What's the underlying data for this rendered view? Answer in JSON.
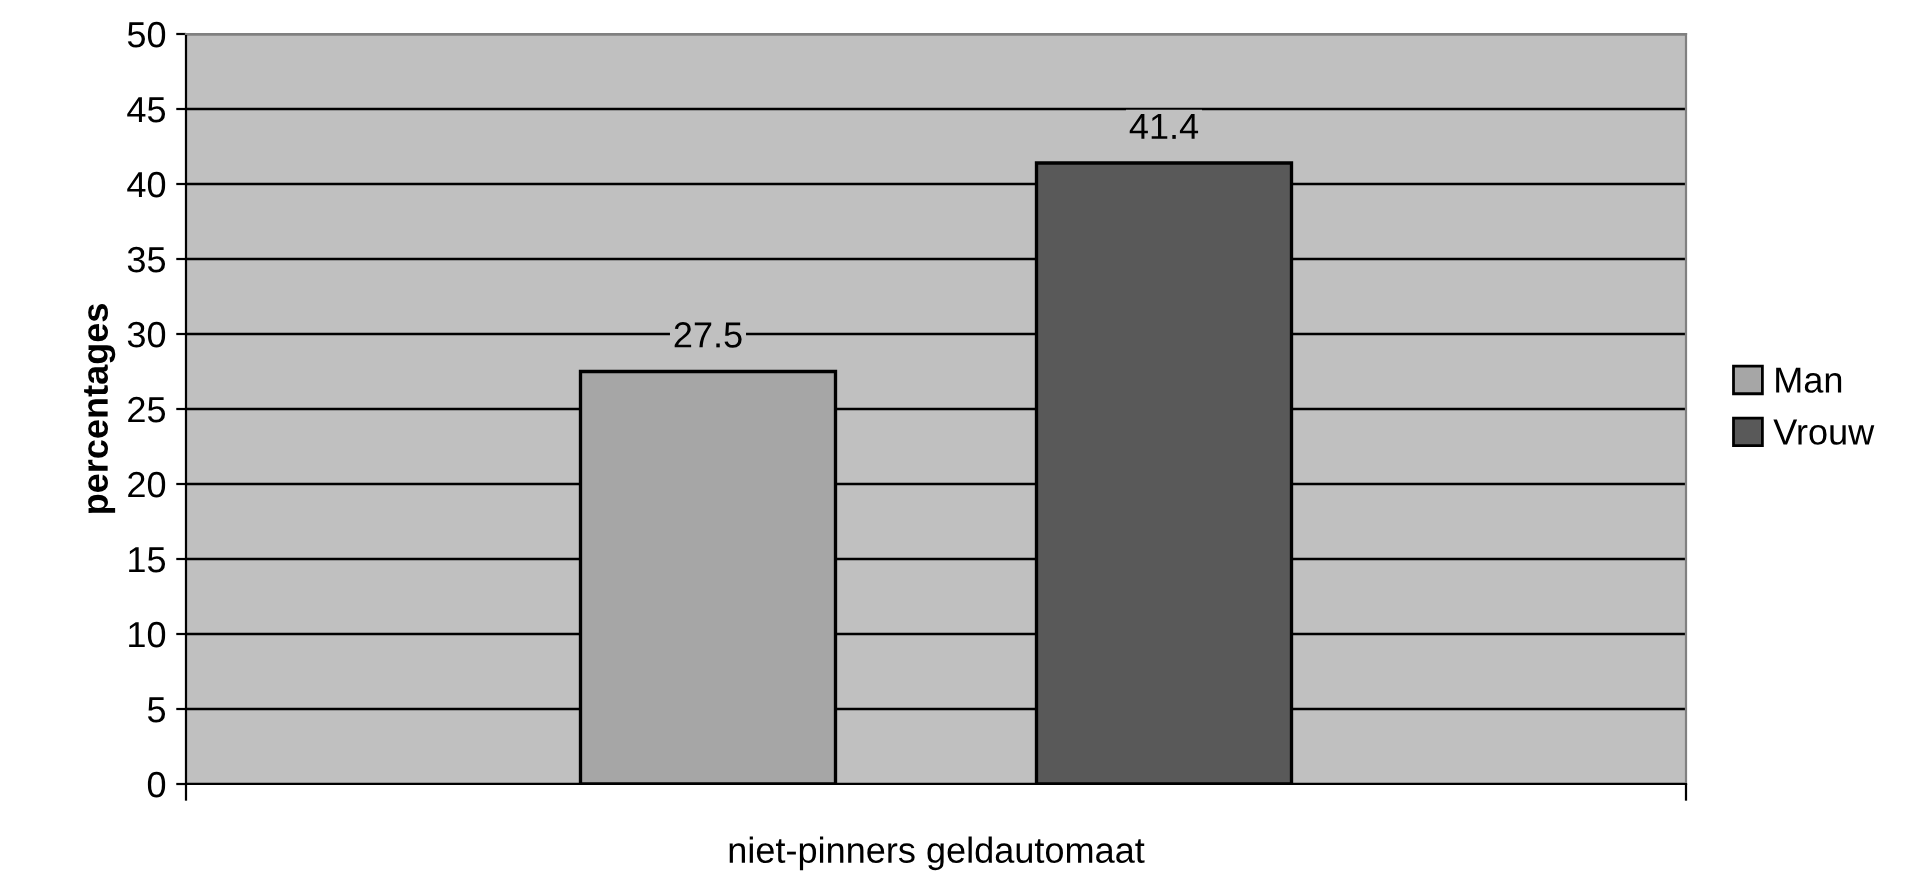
{
  "chart_data": {
    "type": "bar",
    "ylabel": "percentages",
    "categories": [
      "niet-pinners geldautomaat"
    ],
    "series": [
      {
        "name": "Man",
        "color": "#a6a6a6",
        "values": [
          27.5
        ]
      },
      {
        "name": "Vrouw",
        "color": "#595959",
        "values": [
          41.4
        ]
      }
    ],
    "ylim": [
      0,
      50
    ],
    "yticks": [
      0,
      5,
      10,
      15,
      20,
      25,
      30,
      35,
      40,
      45,
      50
    ],
    "grid": "y",
    "legend": "right",
    "data_labels": true
  }
}
